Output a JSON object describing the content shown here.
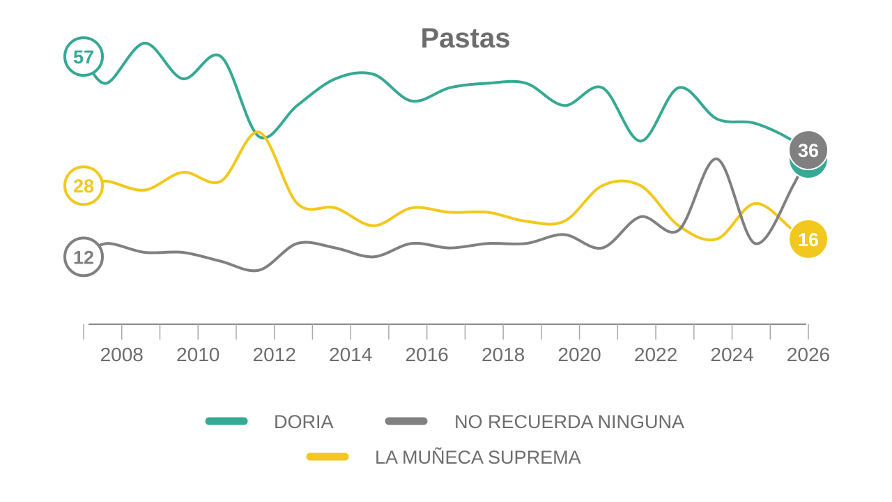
{
  "chart_data": {
    "type": "line",
    "title": "Pastas",
    "xlabel": "",
    "ylabel": "",
    "grid": false,
    "legend": "bottom",
    "xlim": [
      2007,
      2026
    ],
    "ylim": [
      0,
      65
    ],
    "x_ticks": [
      "2008",
      "2010",
      "2012",
      "2014",
      "2016",
      "2018",
      "2020",
      "2022",
      "2024",
      "2026"
    ],
    "x": [
      2007,
      2007.6,
      2008.6,
      2009.6,
      2010.6,
      2011.6,
      2012.6,
      2013.6,
      2014.6,
      2015.6,
      2016.6,
      2017.6,
      2018.6,
      2019.6,
      2020.6,
      2021.6,
      2022.6,
      2023.6,
      2024.6,
      2025.6,
      2026
    ],
    "series": [
      {
        "name": "DORIA",
        "color": "#35a993",
        "values": [
          57,
          51,
          60,
          52,
          57,
          39,
          46,
          52,
          53,
          47,
          50,
          51,
          51,
          46,
          50,
          38,
          50,
          43,
          42,
          38,
          34
        ],
        "start_label": "57",
        "end_label": "34"
      },
      {
        "name": "LA MUÑECA SUPREMA",
        "color": "#f2c81e",
        "values": [
          28,
          29,
          27,
          31,
          29,
          40,
          24,
          23,
          19,
          23,
          22,
          22,
          20,
          20,
          28,
          28,
          19,
          16,
          24,
          18,
          16
        ],
        "start_label": "28",
        "end_label": "16"
      },
      {
        "name": "NO RECUERDA NINGUNA",
        "color": "#808080",
        "values": [
          12,
          15,
          13,
          13,
          11,
          9,
          15,
          14,
          12,
          15,
          14,
          15,
          15,
          17,
          14,
          21,
          18,
          34,
          15,
          28,
          36
        ],
        "start_label": "12",
        "end_label": "36"
      }
    ]
  }
}
